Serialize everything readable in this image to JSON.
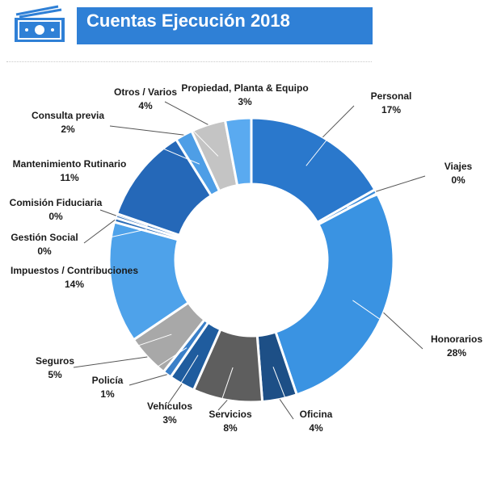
{
  "header": {
    "title": "Cuentas Ejecución 2018",
    "icon": "money-bill-icon",
    "accent": "#2f80d6"
  },
  "chart_data": {
    "type": "donut",
    "title": "Cuentas Ejecución 2018",
    "unit": "%",
    "legend": "none",
    "slices": [
      {
        "name": "Personal",
        "value": 17,
        "label": "17%",
        "color": "#2a78cc"
      },
      {
        "name": "Viajes",
        "value": 0,
        "label": "0%",
        "color": "#3a8ad8"
      },
      {
        "name": "Honorarios",
        "value": 28,
        "label": "28%",
        "color": "#3a93e2"
      },
      {
        "name": "Oficina",
        "value": 4,
        "label": "4%",
        "color": "#1d4f86"
      },
      {
        "name": "Servicios",
        "value": 8,
        "label": "8%",
        "color": "#5e5e5e"
      },
      {
        "name": "Vehículos",
        "value": 3,
        "label": "3%",
        "color": "#1f5c9e"
      },
      {
        "name": "Policía",
        "value": 1,
        "label": "1%",
        "color": "#3a7fc8"
      },
      {
        "name": "Seguros",
        "value": 5,
        "label": "5%",
        "color": "#a8a8a8"
      },
      {
        "name": "Impuestos / Contribuciones",
        "value": 14,
        "label": "14%",
        "color": "#4ea2ea"
      },
      {
        "name": "Gestión Social",
        "value": 0,
        "label": "0%",
        "color": "#2e6fb8"
      },
      {
        "name": "Comisión Fiduciaria",
        "value": 0,
        "label": "0%",
        "color": "#2e6fb8"
      },
      {
        "name": "Mantenimiento Rutinario",
        "value": 11,
        "label": "11%",
        "color": "#2568b8"
      },
      {
        "name": "Consulta previa",
        "value": 2,
        "label": "2%",
        "color": "#4e9ee6"
      },
      {
        "name": "Otros / Varios",
        "value": 4,
        "label": "4%",
        "color": "#c4c4c4"
      },
      {
        "name": "Propiedad, Planta & Equipo",
        "value": 3,
        "label": "3%",
        "color": "#5aaaf0"
      }
    ]
  }
}
